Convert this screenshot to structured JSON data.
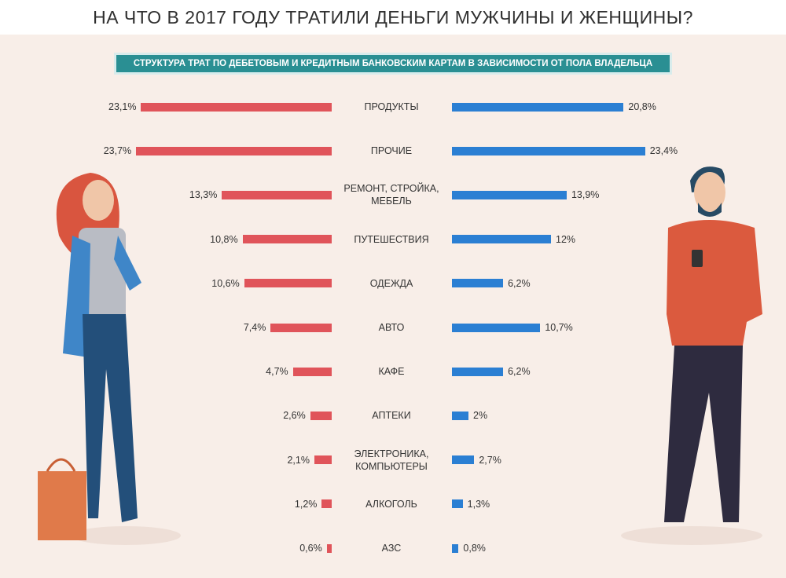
{
  "chart_data": {
    "type": "bar",
    "title": "НА ЧТО В 2017 ГОДУ ТРАТИЛИ ДЕНЬГИ МУЖЧИНЫ И ЖЕНЩИНЫ?",
    "subtitle": "СТРУКТУРА ТРАТ ПО ДЕБЕТОВЫМ И КРЕДИТНЫМ БАНКОВСКИМ КАРТАМ В ЗАВИСИМОСТИ ОТ ПОЛА ВЛАДЕЛЬЦА",
    "categories": [
      "ПРОДУКТЫ",
      "ПРОЧИЕ",
      "РЕМОНТ, СТРОЙКА, МЕБЕЛЬ",
      "ПУТЕШЕСТВИЯ",
      "ОДЕЖДА",
      "АВТО",
      "КАФЕ",
      "АПТЕКИ",
      "ЭЛЕКТРОНИКА, КОМПЬЮТЕРЫ",
      "АЛКОГОЛЬ",
      "АЗС"
    ],
    "series": [
      {
        "color": "#e0545a",
        "values": [
          23.1,
          23.7,
          13.3,
          10.8,
          10.6,
          7.4,
          4.7,
          2.6,
          2.1,
          1.2,
          0.6
        ],
        "value_labels": [
          "23,1%",
          "23,7%",
          "13,3%",
          "10,8%",
          "10,6%",
          "7,4%",
          "4,7%",
          "2,6%",
          "2,1%",
          "1,2%",
          "0,6%"
        ]
      },
      {
        "color": "#2b7fd3",
        "values": [
          20.8,
          23.4,
          13.9,
          12,
          6.2,
          10.7,
          6.2,
          2,
          2.7,
          1.3,
          0.8
        ],
        "value_labels": [
          "20,8%",
          "23,4%",
          "13,9%",
          "12%",
          "6,2%",
          "10,7%",
          "6,2%",
          "2%",
          "2,7%",
          "1,3%",
          "0,8%"
        ]
      }
    ]
  }
}
